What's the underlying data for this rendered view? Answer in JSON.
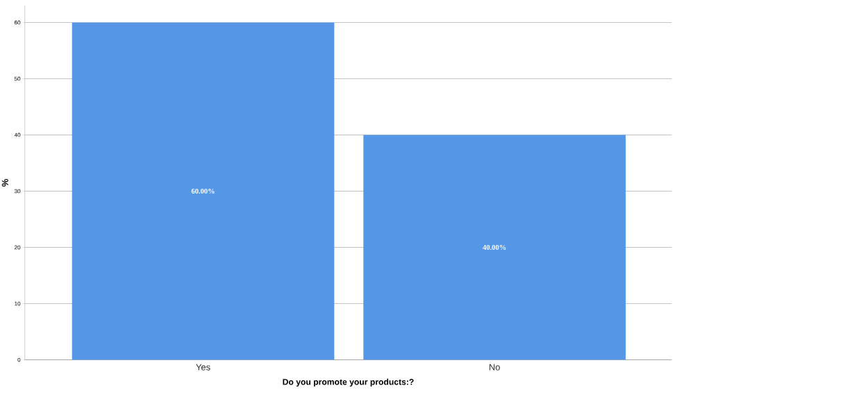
{
  "chart_data": {
    "type": "bar",
    "xlabel": "Do you promote your products:?",
    "ylabel": "%",
    "categories": [
      "Yes",
      "No"
    ],
    "values": [
      60,
      40
    ],
    "value_labels": [
      "60.00%",
      "40.00%"
    ],
    "color": "#5596e6",
    "ylim": [
      0,
      63
    ],
    "yticks": [
      0,
      10,
      20,
      30,
      40,
      50,
      60
    ],
    "grid": "y"
  }
}
